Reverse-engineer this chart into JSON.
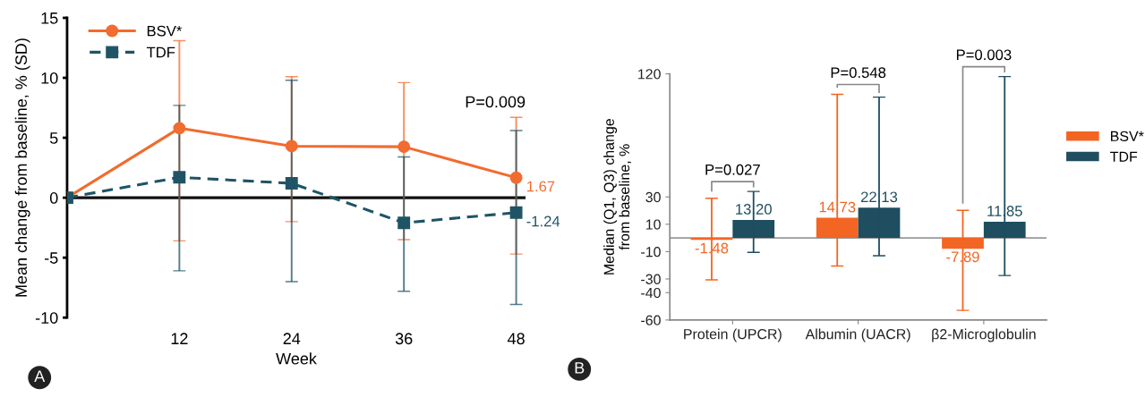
{
  "chart_data": [
    {
      "type": "line",
      "xlabel": "Week",
      "ylabel": "Mean change from baseline, % (SD)",
      "x": [
        0,
        12,
        24,
        36,
        48
      ],
      "xlim": [
        0,
        49
      ],
      "xticks": [
        12,
        24,
        36,
        48
      ],
      "ylim": [
        -10,
        15
      ],
      "yticks": [
        -10,
        -5,
        0,
        5,
        10,
        15
      ],
      "series": [
        {
          "name": "BSV*",
          "color": "#f26b2f",
          "marker": "circle",
          "line_style": "solid",
          "values": [
            0,
            5.8,
            4.3,
            4.25,
            1.67
          ],
          "errors": [
            null,
            [
              -3.6,
              13.1
            ],
            [
              -2.0,
              10.1
            ],
            [
              -3.5,
              9.6
            ],
            [
              -4.7,
              6.7
            ]
          ],
          "value_labels": [
            null,
            null,
            null,
            null,
            "1.67"
          ]
        },
        {
          "name": "TDF",
          "color": "#1f5466",
          "marker": "square",
          "line_style": "dashed",
          "values": [
            0,
            1.7,
            1.2,
            -2.1,
            -1.24
          ],
          "errors": [
            null,
            [
              -6.1,
              7.7
            ],
            [
              -7.0,
              9.8
            ],
            [
              -7.8,
              3.4
            ],
            [
              -8.9,
              5.6
            ]
          ],
          "value_labels": [
            null,
            null,
            null,
            null,
            "-1.24"
          ]
        }
      ],
      "ref_lines": [
        {
          "axis": "y",
          "value": 0,
          "color": "#111111"
        }
      ],
      "legend": "top left",
      "grid": false,
      "annotations": [
        "A",
        "P=0.009"
      ]
    },
    {
      "type": "bar",
      "ylabel": "Median (Q1, Q3) change\nfrom baseline, %",
      "categories": [
        "Protein (UPCR)",
        "Albumin (UACR)",
        "β2-Microglobulin"
      ],
      "ylim": [
        -60,
        120
      ],
      "yticks": [
        -60,
        -40,
        -30,
        -10,
        10,
        30,
        120
      ],
      "series": [
        {
          "name": "BSV*",
          "color": "#f26522",
          "values": [
            -1.48,
            14.73,
            -7.89
          ],
          "errors": [
            [
              -30.7,
              29
            ],
            [
              -20.5,
              105
            ],
            [
              -53,
              20.2
            ]
          ],
          "value_labels": [
            "-1.48",
            "14.73",
            "-7.89"
          ]
        },
        {
          "name": "TDF",
          "color": "#1e4e5f",
          "values": [
            13.2,
            22.13,
            11.85
          ],
          "errors": [
            [
              -10.6,
              34
            ],
            [
              -13,
              103
            ],
            [
              -27.5,
              118
            ]
          ],
          "value_labels": [
            "13.20",
            "22.13",
            "11.85"
          ]
        }
      ],
      "ref_lines": [
        {
          "axis": "y",
          "value": 0,
          "color": "#999999"
        }
      ],
      "legend": "right",
      "grid": false,
      "annotations": [
        "B",
        "P=0.027",
        "P=0.548",
        "P=0.003"
      ]
    }
  ]
}
